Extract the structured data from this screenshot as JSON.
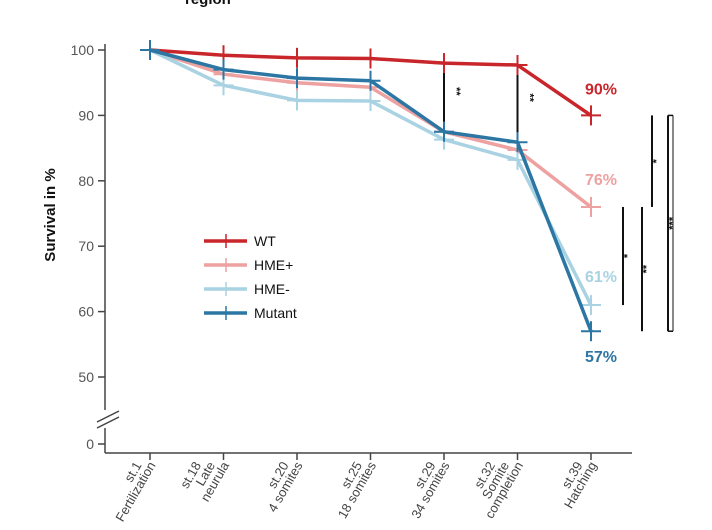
{
  "header_fragment": "region",
  "chart_data": {
    "type": "line",
    "ylabel": "Survival in %",
    "xlabel": "",
    "ylim": [
      50,
      100
    ],
    "yticks": [
      0,
      50,
      60,
      70,
      80,
      90,
      100
    ],
    "axis_break": true,
    "grid": false,
    "legend_position": "center-left",
    "categories": [
      [
        "st.1",
        "Fertilization"
      ],
      [
        "st.18",
        "Late",
        "neurula"
      ],
      [
        "st.20",
        "4 somites"
      ],
      [
        "st.25",
        "18 somites"
      ],
      [
        "st.29",
        "34 somites"
      ],
      [
        "st.32",
        "Somite",
        "completion"
      ],
      [
        "st.39",
        "Hatching"
      ]
    ],
    "series": [
      {
        "name": "WT",
        "color": "#c8262b",
        "values": [
          100,
          99.2,
          98.8,
          98.7,
          98.0,
          97.7,
          90
        ],
        "end_label": "90%"
      },
      {
        "name": "HME+",
        "color": "#eda1a0",
        "values": [
          100,
          96.3,
          95.0,
          94.3,
          87.5,
          84.7,
          76
        ],
        "end_label": "76%"
      },
      {
        "name": "HME-",
        "color": "#a9d2e3",
        "values": [
          100,
          94.6,
          92.3,
          92.2,
          86.3,
          83.2,
          61
        ],
        "end_label": "61%"
      },
      {
        "name": "Mutant",
        "color": "#2b76a3",
        "values": [
          100,
          97.0,
          95.7,
          95.3,
          87.5,
          85.9,
          57
        ],
        "end_label": "57%"
      }
    ],
    "significance": [
      {
        "at": "st.29",
        "label": "**"
      },
      {
        "at": "st.32",
        "label": "**"
      },
      {
        "label": "*",
        "from": 90,
        "to": 76
      },
      {
        "label": "*",
        "from": 76,
        "to": 61
      },
      {
        "label": "**",
        "from": 76,
        "to": 57
      },
      {
        "label": "***",
        "from": 90,
        "to": 57
      }
    ]
  }
}
